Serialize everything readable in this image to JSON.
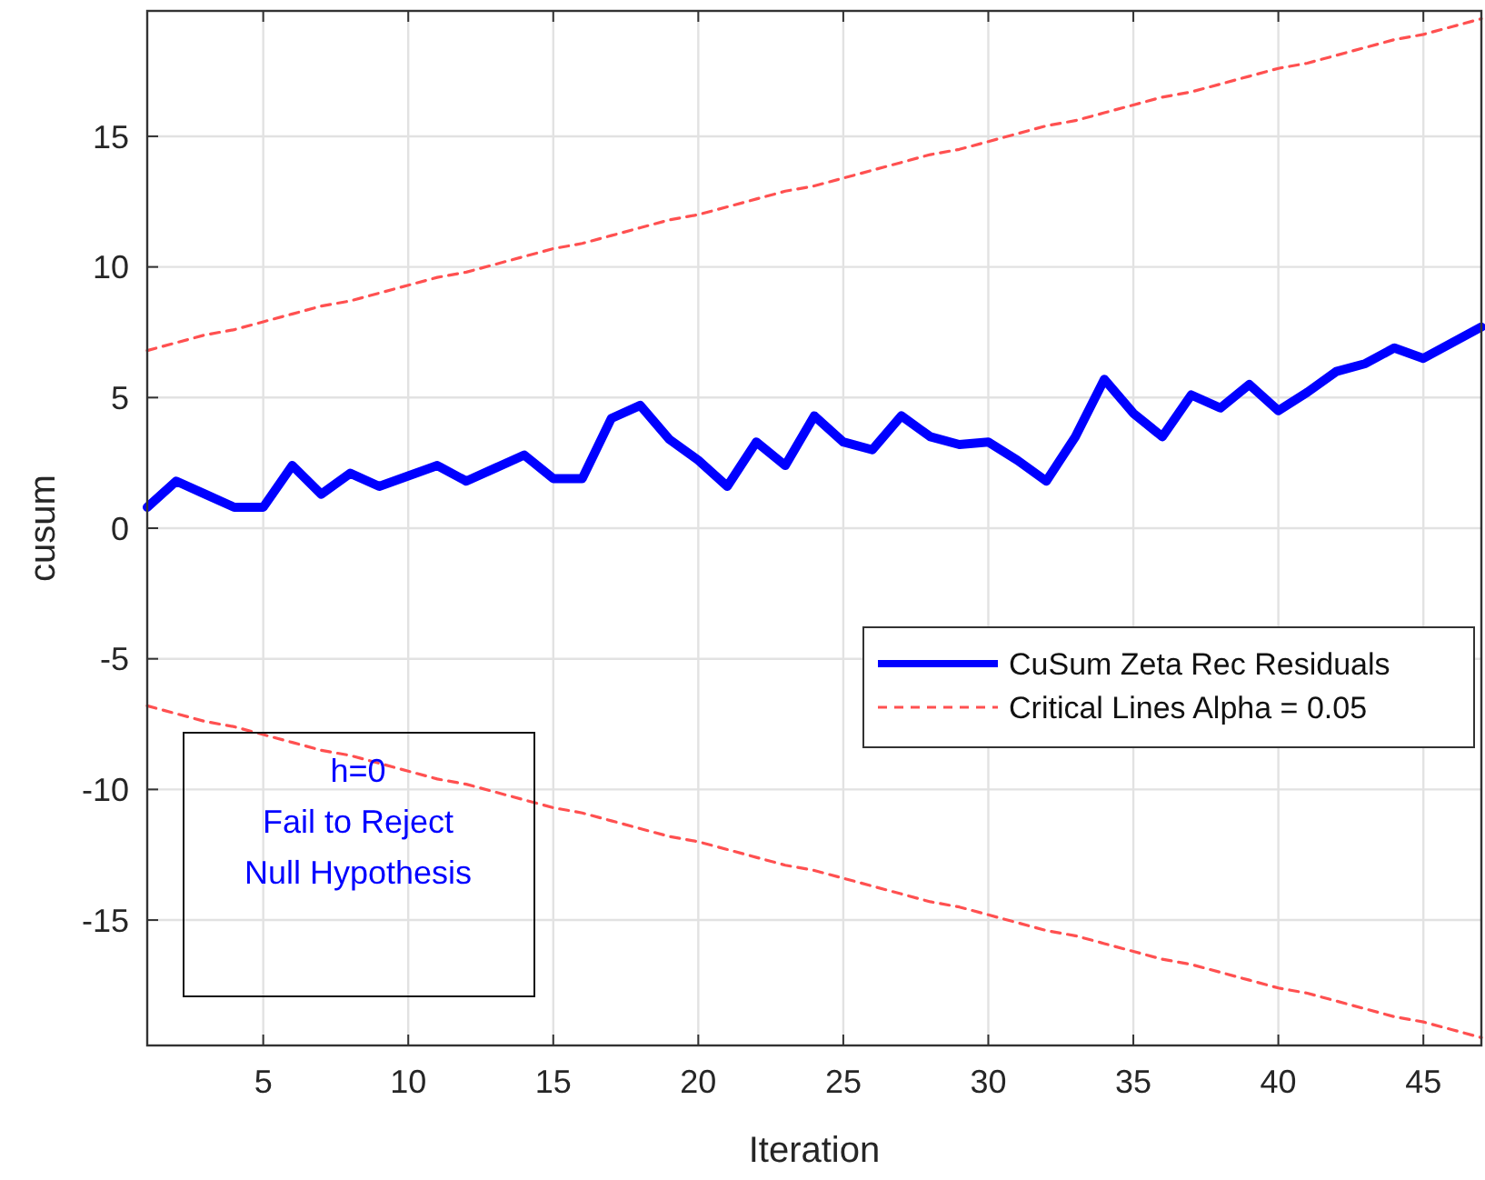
{
  "chart_data": {
    "type": "line",
    "xlabel": "Iteration",
    "ylabel": "cusum",
    "x": [
      1,
      2,
      3,
      4,
      5,
      6,
      7,
      8,
      9,
      10,
      11,
      12,
      13,
      14,
      15,
      16,
      17,
      18,
      19,
      20,
      21,
      22,
      23,
      24,
      25,
      26,
      27,
      28,
      29,
      30,
      31,
      32,
      33,
      34,
      35,
      36,
      37,
      38,
      39,
      40,
      41,
      42,
      43,
      44,
      45,
      46,
      47
    ],
    "series": [
      {
        "name": "CuSum Zeta Rec Residuals",
        "color": "#0000ff",
        "line_style": "solid",
        "values": [
          0.8,
          1.8,
          1.3,
          0.8,
          0.8,
          2.4,
          1.3,
          2.1,
          1.6,
          2.0,
          2.4,
          1.8,
          2.3,
          2.8,
          1.9,
          1.9,
          4.2,
          4.7,
          3.4,
          2.6,
          1.6,
          3.3,
          2.4,
          4.3,
          3.3,
          3.0,
          4.3,
          3.5,
          3.2,
          3.3,
          2.6,
          1.8,
          3.5,
          5.7,
          4.4,
          3.5,
          5.1,
          4.6,
          5.5,
          4.5,
          5.2,
          6.0,
          6.3,
          6.9,
          6.5,
          7.1,
          7.7
        ]
      },
      {
        "name": "Critical Lines Alpha = 0.05",
        "color": "#ff5050",
        "line_style": "dashed",
        "values": [
          6.8,
          7.1,
          7.4,
          7.6,
          7.9,
          8.2,
          8.5,
          8.7,
          9.0,
          9.3,
          9.6,
          9.8,
          10.1,
          10.4,
          10.7,
          10.9,
          11.2,
          11.5,
          11.8,
          12.0,
          12.3,
          12.6,
          12.9,
          13.1,
          13.4,
          13.7,
          14.0,
          14.3,
          14.5,
          14.8,
          15.1,
          15.4,
          15.6,
          15.9,
          16.2,
          16.5,
          16.7,
          17.0,
          17.3,
          17.6,
          17.8,
          18.1,
          18.4,
          18.7,
          18.9,
          19.2,
          19.5
        ]
      },
      {
        "color": "#ff5050",
        "line_style": "dashed",
        "values": [
          -6.8,
          -7.1,
          -7.4,
          -7.6,
          -7.9,
          -8.2,
          -8.5,
          -8.7,
          -9.0,
          -9.3,
          -9.6,
          -9.8,
          -10.1,
          -10.4,
          -10.7,
          -10.9,
          -11.2,
          -11.5,
          -11.8,
          -12.0,
          -12.3,
          -12.6,
          -12.9,
          -13.1,
          -13.4,
          -13.7,
          -14.0,
          -14.3,
          -14.5,
          -14.8,
          -15.1,
          -15.4,
          -15.6,
          -15.9,
          -16.2,
          -16.5,
          -16.7,
          -17.0,
          -17.3,
          -17.6,
          -17.8,
          -18.1,
          -18.4,
          -18.7,
          -18.9,
          -19.2,
          -19.5
        ]
      }
    ],
    "annotations": [
      "h=0\nFail to Reject\nNull Hypothesis"
    ],
    "xlim": [
      1,
      47
    ],
    "xticks": [
      5,
      10,
      15,
      20,
      25,
      30,
      35,
      40,
      45
    ],
    "ylim": [
      -19.8,
      19.8
    ],
    "yticks": [
      -15,
      -10,
      -5,
      0,
      5,
      10,
      15
    ],
    "grid": true,
    "legend": "right",
    "marker": "none"
  }
}
